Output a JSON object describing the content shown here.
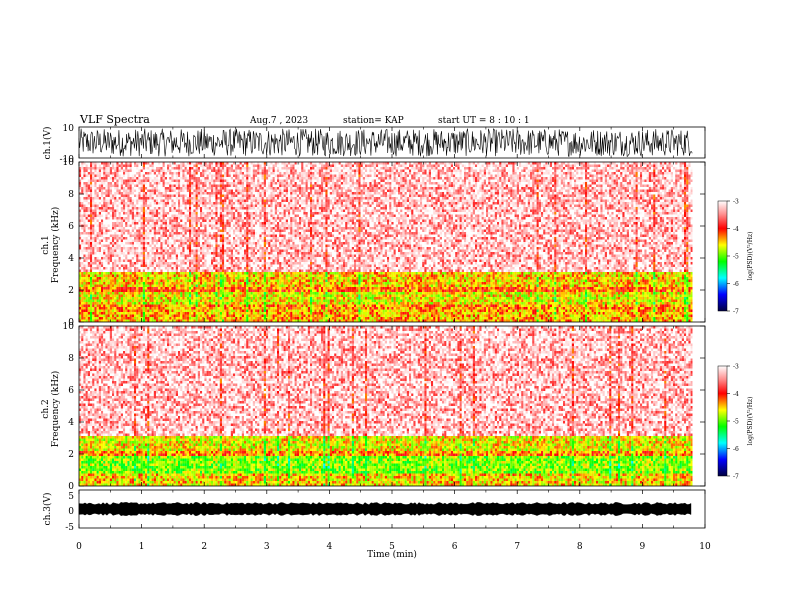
{
  "header": {
    "title": "VLF Spectra",
    "date": "Aug.7 , 2023",
    "station": "station= KAP",
    "start": "start UT = 8 : 10 : 1"
  },
  "chart_data": [
    {
      "type": "line",
      "panel": "ch1-waveform",
      "ylabel": "ch.1(V)",
      "ylim": [
        -10,
        10
      ],
      "yticks": [
        "10",
        "-10"
      ],
      "xlim": [
        0,
        10
      ],
      "signal": "noise-like waveform spanning about -9 to +9 V over 0-9.8 min"
    },
    {
      "type": "heatmap",
      "panel": "ch1-spectrogram",
      "ylabel": "ch.1 Frequency (kHz)",
      "ylim": [
        0,
        10
      ],
      "yticks": [
        "0",
        "2",
        "4",
        "6",
        "8",
        "10"
      ],
      "xlim": [
        0,
        10
      ],
      "data_end_min": 9.8,
      "colorbar": {
        "label": "log(PSD)(V²/Hz)",
        "range": [
          -7,
          -3
        ],
        "ticks": [
          "-3",
          "-4",
          "-5",
          "-6",
          "-7"
        ]
      },
      "bands": [
        {
          "from_khz": 0.0,
          "to_khz": 0.9,
          "log_psd": -4.4
        },
        {
          "from_khz": 0.9,
          "to_khz": 1.2,
          "log_psd": -4.3
        },
        {
          "from_khz": 1.2,
          "to_khz": 1.9,
          "log_psd": -4.6
        },
        {
          "from_khz": 1.9,
          "to_khz": 2.3,
          "log_psd": -4.2
        },
        {
          "from_khz": 2.3,
          "to_khz": 3.2,
          "log_psd": -4.5
        },
        {
          "from_khz": 3.2,
          "to_khz": 10.0,
          "log_psd": -3.4
        }
      ]
    },
    {
      "type": "heatmap",
      "panel": "ch2-spectrogram",
      "ylabel": "ch.2 Frequency (kHz)",
      "ylim": [
        0,
        10
      ],
      "yticks": [
        "0",
        "2",
        "4",
        "6",
        "8",
        "10"
      ],
      "xlim": [
        0,
        10
      ],
      "data_end_min": 9.8,
      "colorbar": {
        "label": "log(PSD)(V²/Hz)",
        "range": [
          -7,
          -3
        ],
        "ticks": [
          "-3",
          "-4",
          "-5",
          "-6",
          "-7"
        ]
      },
      "bands": [
        {
          "from_khz": 0.0,
          "to_khz": 0.9,
          "log_psd": -4.5
        },
        {
          "from_khz": 0.9,
          "to_khz": 1.9,
          "log_psd": -4.9
        },
        {
          "from_khz": 1.9,
          "to_khz": 2.2,
          "log_psd": -4.3
        },
        {
          "from_khz": 2.2,
          "to_khz": 3.2,
          "log_psd": -4.6
        },
        {
          "from_khz": 3.2,
          "to_khz": 10.0,
          "log_psd": -3.4
        }
      ]
    },
    {
      "type": "line",
      "panel": "ch3-waveform",
      "ylabel": "ch.3(V)",
      "ylim": [
        -5,
        5
      ],
      "yticks": [
        "5",
        "0",
        "-5"
      ],
      "xlim": [
        0,
        10
      ],
      "signal": "narrow band around 0 V (about -0.5 to +0.5 V) over 0-9.8 min"
    }
  ],
  "xaxis": {
    "label": "Time (min)",
    "ticks": [
      "0",
      "1",
      "2",
      "3",
      "4",
      "5",
      "6",
      "7",
      "8",
      "9",
      "10"
    ]
  },
  "colors": {
    "waveform": "#000000",
    "background": "#ffffff"
  }
}
